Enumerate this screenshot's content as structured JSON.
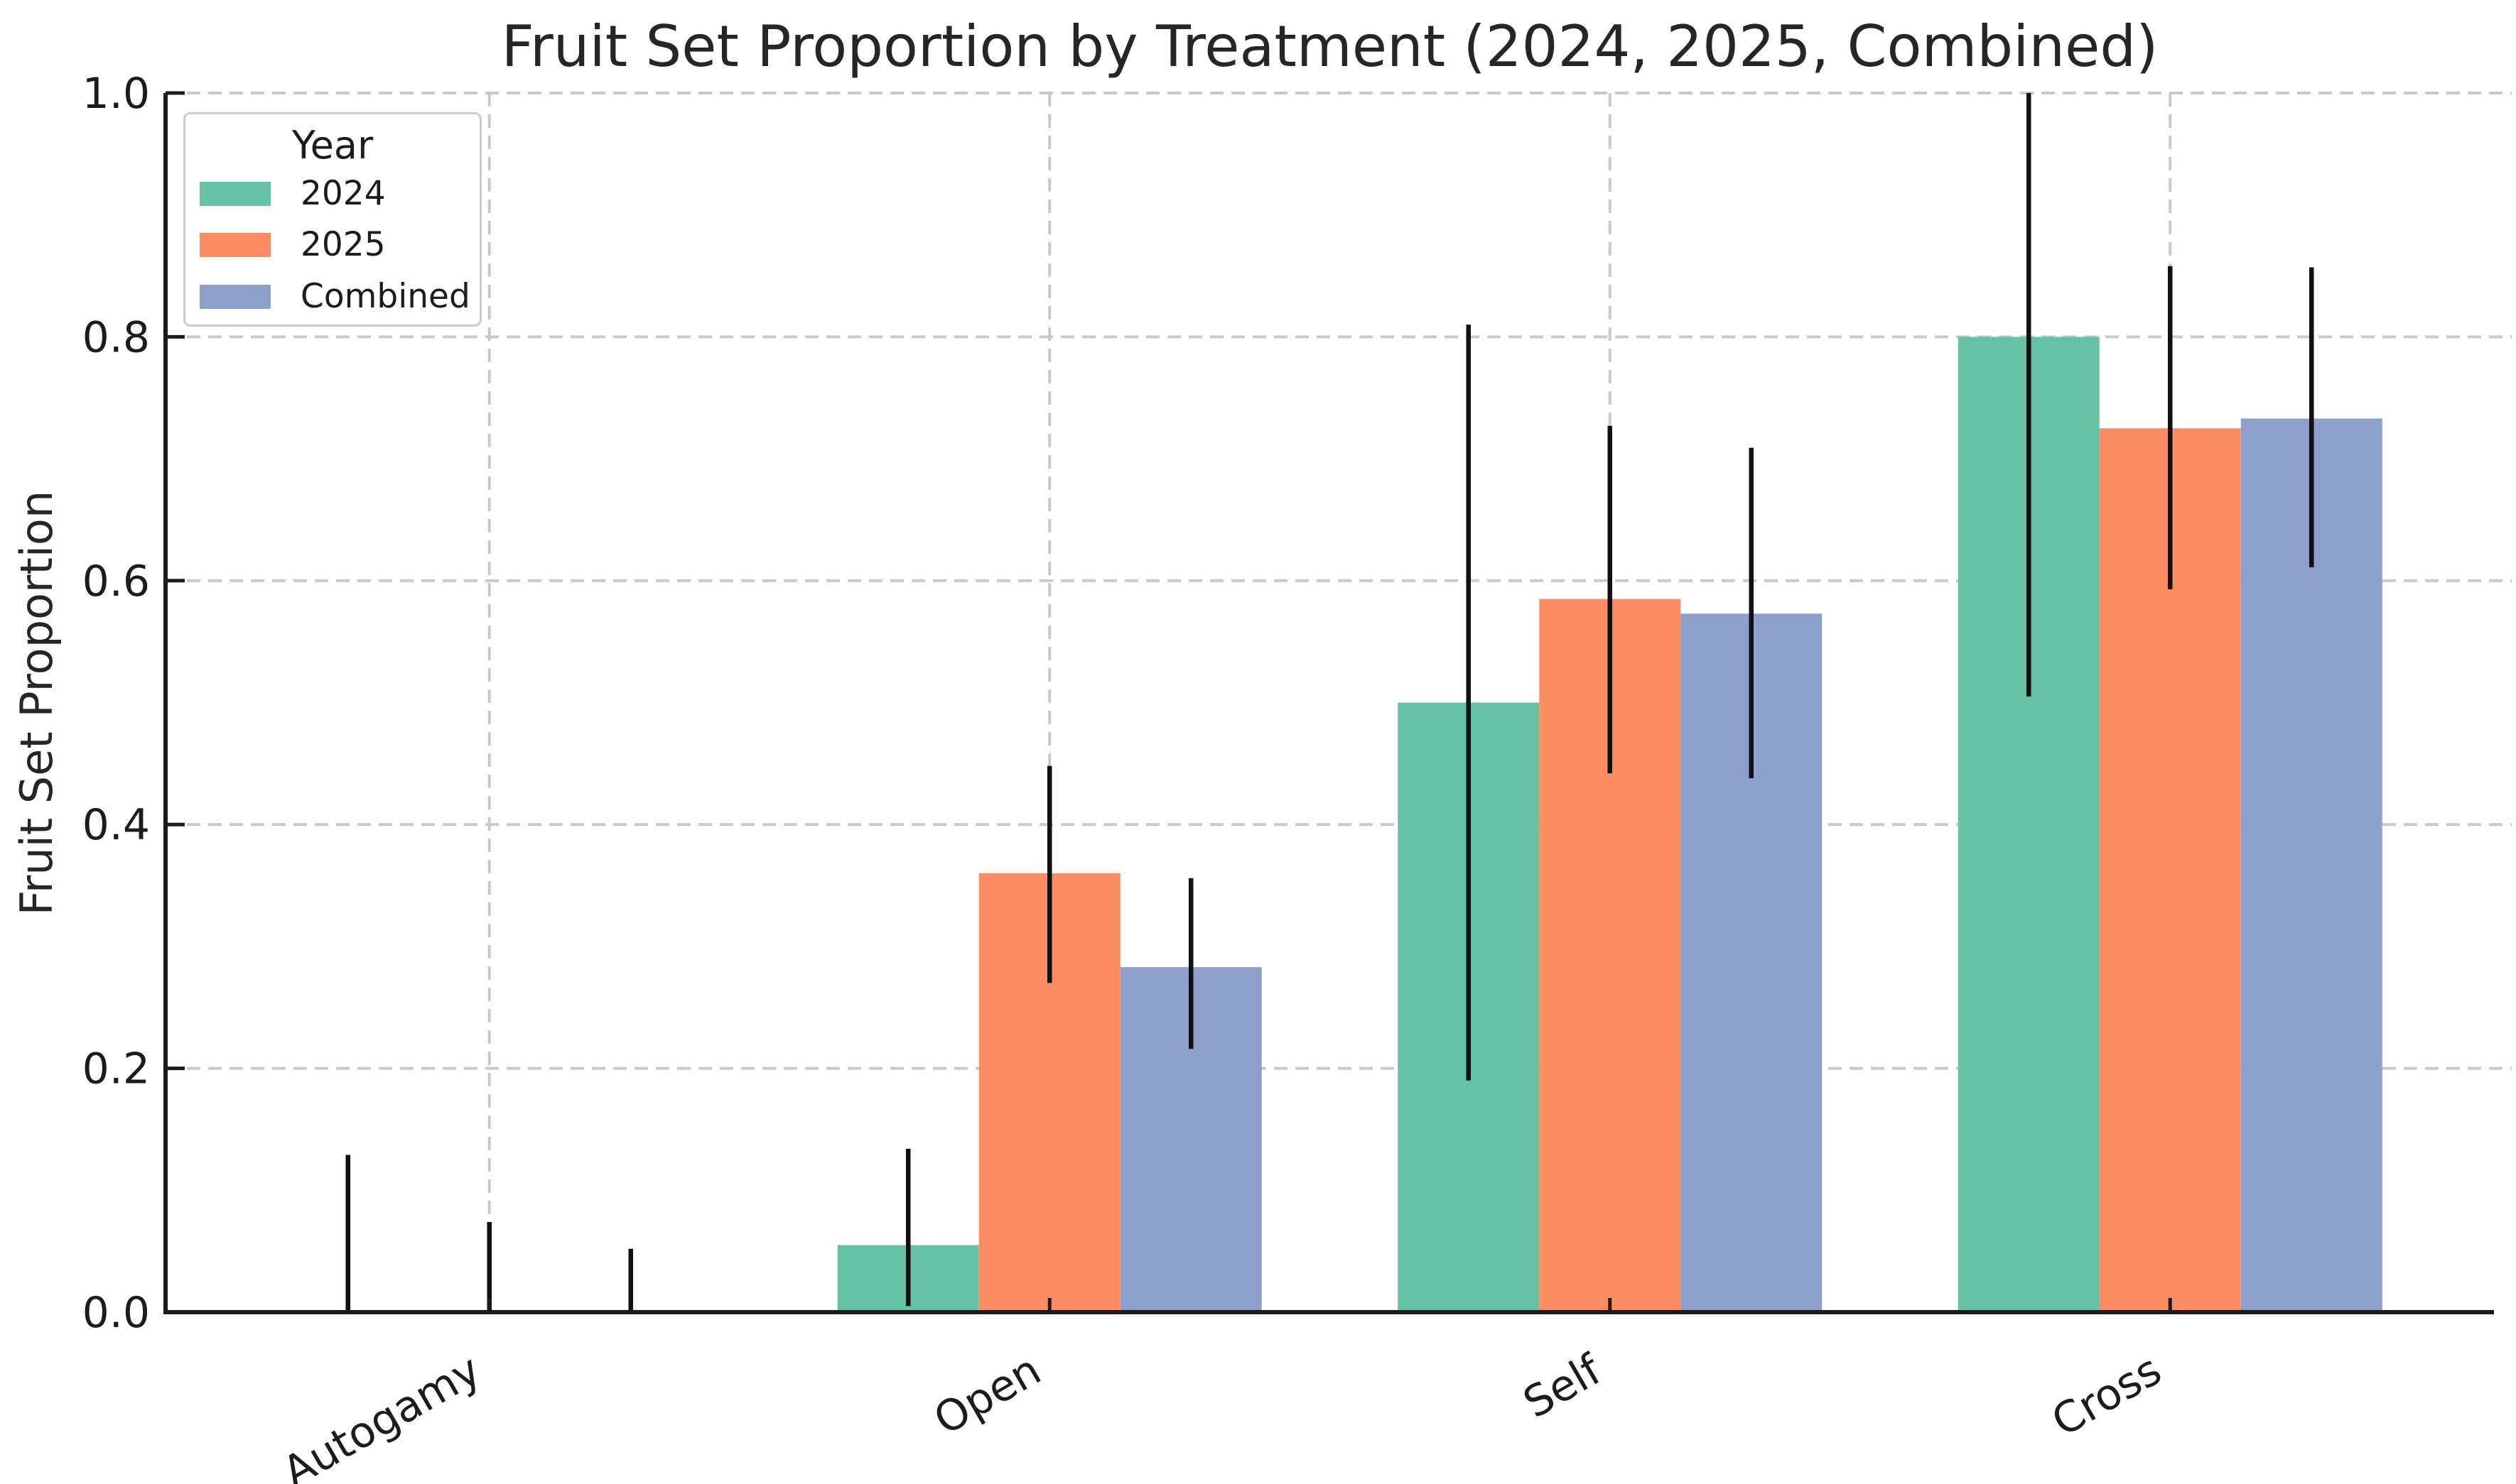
{
  "title": "Fruit Set Proportion by Treatment (2024, 2025, Combined)",
  "ylabel": "Fruit Set Proportion",
  "legend": {
    "title": "Year"
  },
  "colors": {
    "background": "#ffffff",
    "grid": "#c9c9c9",
    "axis": "#1c1c1c",
    "text": "#262626",
    "tick_label": "#1c1c1c",
    "errorbar": "#111111",
    "legend_border": "#cccccc"
  },
  "chart_data": {
    "type": "bar",
    "title": "Fruit Set Proportion by Treatment (2024, 2025, Combined)",
    "xlabel": "",
    "ylabel": "Fruit Set Proportion",
    "categories": [
      "Autogamy",
      "Open",
      "Self",
      "Cross"
    ],
    "series": [
      {
        "name": "2024",
        "color": "#66c2a5",
        "values": [
          0.0,
          0.055,
          0.5,
          0.8
        ],
        "error_low": [
          0.0,
          0.005,
          0.19,
          0.505
        ],
        "error_high": [
          0.129,
          0.134,
          0.81,
          1.0
        ]
      },
      {
        "name": "2025",
        "color": "#fc8d62",
        "values": [
          0.0,
          0.36,
          0.585,
          0.725
        ],
        "error_low": [
          0.0,
          0.27,
          0.442,
          0.593
        ],
        "error_high": [
          0.074,
          0.448,
          0.727,
          0.858
        ]
      },
      {
        "name": "Combined",
        "color": "#8da0cb",
        "values": [
          0.0,
          0.283,
          0.573,
          0.733
        ],
        "error_low": [
          0.0,
          0.216,
          0.438,
          0.611
        ],
        "error_high": [
          0.052,
          0.356,
          0.709,
          0.857
        ]
      }
    ],
    "ylim": [
      0.0,
      1.0
    ],
    "yticks": [
      0.0,
      0.2,
      0.4,
      0.6,
      0.8,
      1.0
    ],
    "ytick_labels": [
      "0.0",
      "0.2",
      "0.4",
      "0.6",
      "0.8",
      "1.0"
    ],
    "grid": true,
    "grid_style": "dashed",
    "legend_position": "upper left",
    "legend_title": "Year",
    "xtick_label_rotation_deg": 30,
    "error_bars": true
  }
}
